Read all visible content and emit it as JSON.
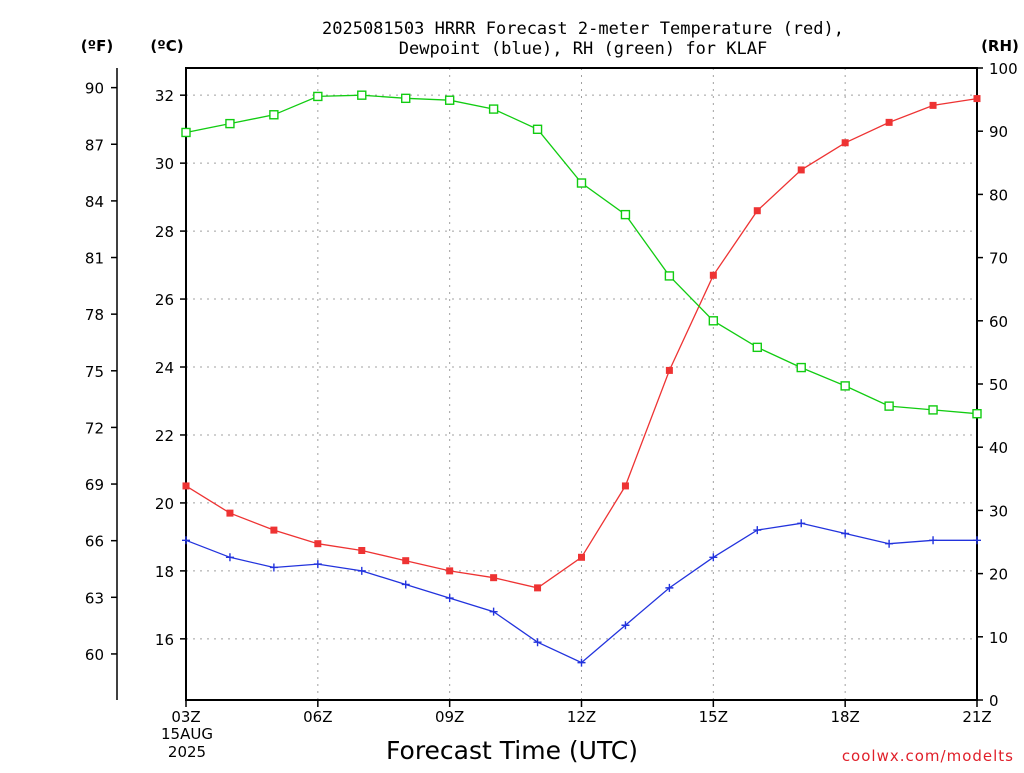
{
  "chart_data": {
    "type": "line",
    "title_line1": "2025081503 HRRR Forecast 2-meter Temperature (red),",
    "title_line2": "Dewpoint (blue), RH (green) for KLAF",
    "xlabel": "Forecast Time (UTC)",
    "date_label_1": "15AUG",
    "date_label_2": "2025",
    "credit": "coolwx.com/modelts",
    "units": {
      "fahrenheit": "(ºF)",
      "celsius": "(ºC)",
      "rh": "(RH)"
    },
    "x_hours": [
      3,
      4,
      5,
      6,
      7,
      8,
      9,
      10,
      11,
      12,
      13,
      14,
      15,
      16,
      17,
      18,
      19,
      20,
      21
    ],
    "x_ticks": [
      {
        "hour": 3,
        "label": "03Z"
      },
      {
        "hour": 6,
        "label": "06Z"
      },
      {
        "hour": 9,
        "label": "09Z"
      },
      {
        "hour": 12,
        "label": "12Z"
      },
      {
        "hour": 15,
        "label": "15Z"
      },
      {
        "hour": 18,
        "label": "18Z"
      },
      {
        "hour": 21,
        "label": "21Z"
      }
    ],
    "celsius_axis": {
      "range": [
        14.2,
        32.8
      ],
      "ticks": [
        16,
        18,
        20,
        22,
        24,
        26,
        28,
        30,
        32
      ]
    },
    "fahrenheit_ticks": [
      60,
      63,
      66,
      69,
      72,
      75,
      78,
      81,
      84,
      87,
      90
    ],
    "rh_axis": {
      "range": [
        0,
        100
      ],
      "ticks": [
        0,
        10,
        20,
        30,
        40,
        50,
        60,
        70,
        80,
        90,
        100
      ]
    },
    "series": [
      {
        "name": "Temperature",
        "axis": "celsius",
        "color": "#ee3333",
        "marker": "filled-square",
        "values": [
          20.5,
          19.7,
          19.2,
          18.8,
          18.6,
          18.3,
          18.0,
          17.8,
          17.5,
          18.4,
          20.5,
          23.9,
          26.7,
          28.6,
          29.8,
          30.6,
          31.2,
          31.7,
          31.9
        ]
      },
      {
        "name": "Dewpoint",
        "axis": "celsius",
        "color": "#2233dd",
        "marker": "plus",
        "values": [
          18.9,
          18.4,
          18.1,
          18.2,
          18.0,
          17.6,
          17.2,
          16.8,
          15.9,
          15.3,
          16.4,
          17.5,
          18.4,
          19.2,
          19.4,
          19.1,
          18.8,
          18.9,
          18.9
        ]
      },
      {
        "name": "RH",
        "axis": "rh",
        "color": "#11cc11",
        "marker": "open-square",
        "values": [
          89.8,
          91.2,
          92.6,
          95.5,
          95.7,
          95.2,
          94.9,
          93.5,
          90.3,
          81.8,
          76.8,
          67.1,
          60.0,
          55.8,
          52.6,
          49.7,
          46.5,
          45.9,
          45.3
        ]
      }
    ]
  }
}
